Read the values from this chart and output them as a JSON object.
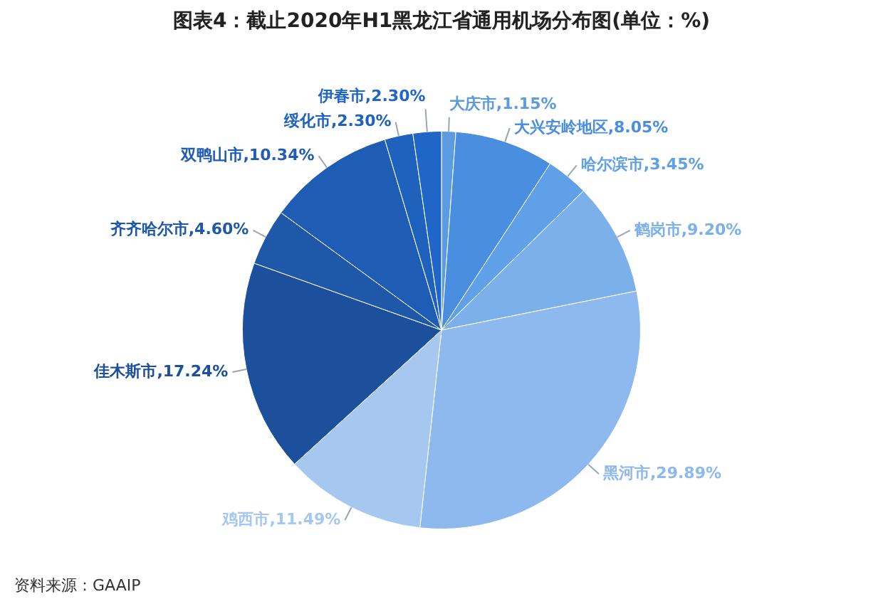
{
  "chart_data": {
    "type": "pie",
    "title": "图表4：截止2020年H1黑龙江省通用机场分布图(单位：%)",
    "categories": [
      "大庆市",
      "大兴安岭地区",
      "哈尔滨市",
      "鹤岗市",
      "黑河市",
      "鸡西市",
      "佳木斯市",
      "齐齐哈尔市",
      "双鸭山市",
      "绥化市",
      "伊春市"
    ],
    "values": [
      1.15,
      8.05,
      3.45,
      9.2,
      29.89,
      11.49,
      17.24,
      4.6,
      10.34,
      2.3,
      2.3
    ],
    "colors": [
      "#5b9be0",
      "#4a8ee0",
      "#5fa0e8",
      "#7cb0ea",
      "#8db9ee",
      "#a6c8f0",
      "#1c4f9c",
      "#1f58a8",
      "#1f5cb3",
      "#1e62bd",
      "#1f66c6"
    ],
    "value_labels": [
      "1.15%",
      "8.05%",
      "3.45%",
      "9.20%",
      "29.89%",
      "11.49%",
      "17.24%",
      "4.60%",
      "10.34%",
      "2.30%",
      "2.30%"
    ],
    "legend": false,
    "annotations": [
      "资料来源：GAAIP"
    ]
  }
}
